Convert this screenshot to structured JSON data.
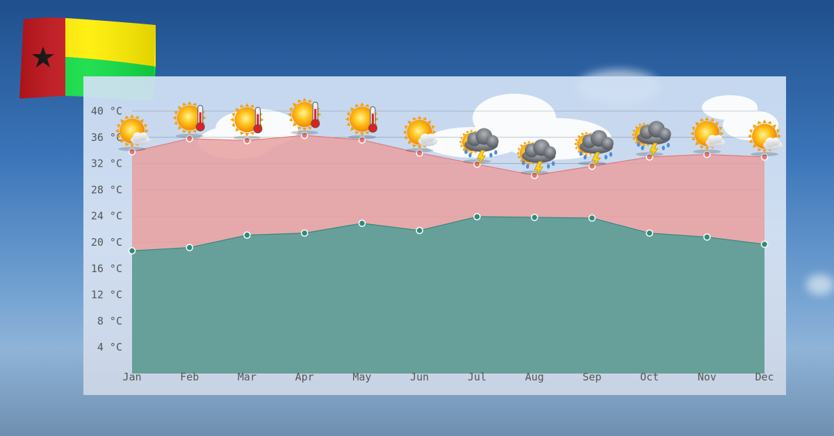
{
  "chart_data": {
    "type": "area",
    "title": "",
    "xlabel": "",
    "ylabel": "",
    "categories": [
      "Jan",
      "Feb",
      "Mar",
      "Apr",
      "May",
      "Jun",
      "Jul",
      "Aug",
      "Sep",
      "Oct",
      "Nov",
      "Dec"
    ],
    "y_ticks": [
      "4 °C",
      "8 °C",
      "12 °C",
      "16 °C",
      "20 °C",
      "24 °C",
      "28 °C",
      "32 °C",
      "36 °C",
      "40 °C"
    ],
    "ylim": [
      0,
      40
    ],
    "grid": true,
    "legend": "none",
    "series": [
      {
        "values": [
          33.8,
          35.8,
          35.5,
          36.3,
          35.6,
          33.6,
          31.9,
          30.2,
          31.6,
          33.0,
          33.4,
          33.0
        ],
        "color": "#e07a7a",
        "fill": "#e9a0a0"
      },
      {
        "values": [
          18.7,
          19.2,
          21.1,
          21.4,
          22.9,
          21.8,
          23.9,
          23.8,
          23.7,
          21.4,
          20.8,
          19.7
        ],
        "color": "#2e8b7a",
        "fill": "#5e9a92"
      }
    ],
    "weather_icons": [
      "sun-cloud",
      "sun-hot",
      "sun-hot",
      "sun-hot",
      "sun-hot",
      "sun-cloud",
      "thunderstorm",
      "thunderstorm",
      "thunderstorm",
      "thunderstorm",
      "sun-cloud",
      "sun-cloud"
    ]
  },
  "flag": {
    "colors": {
      "red": "#c8161d",
      "yellow": "#ffee00",
      "green": "#11dd44",
      "star": "#111111"
    }
  }
}
